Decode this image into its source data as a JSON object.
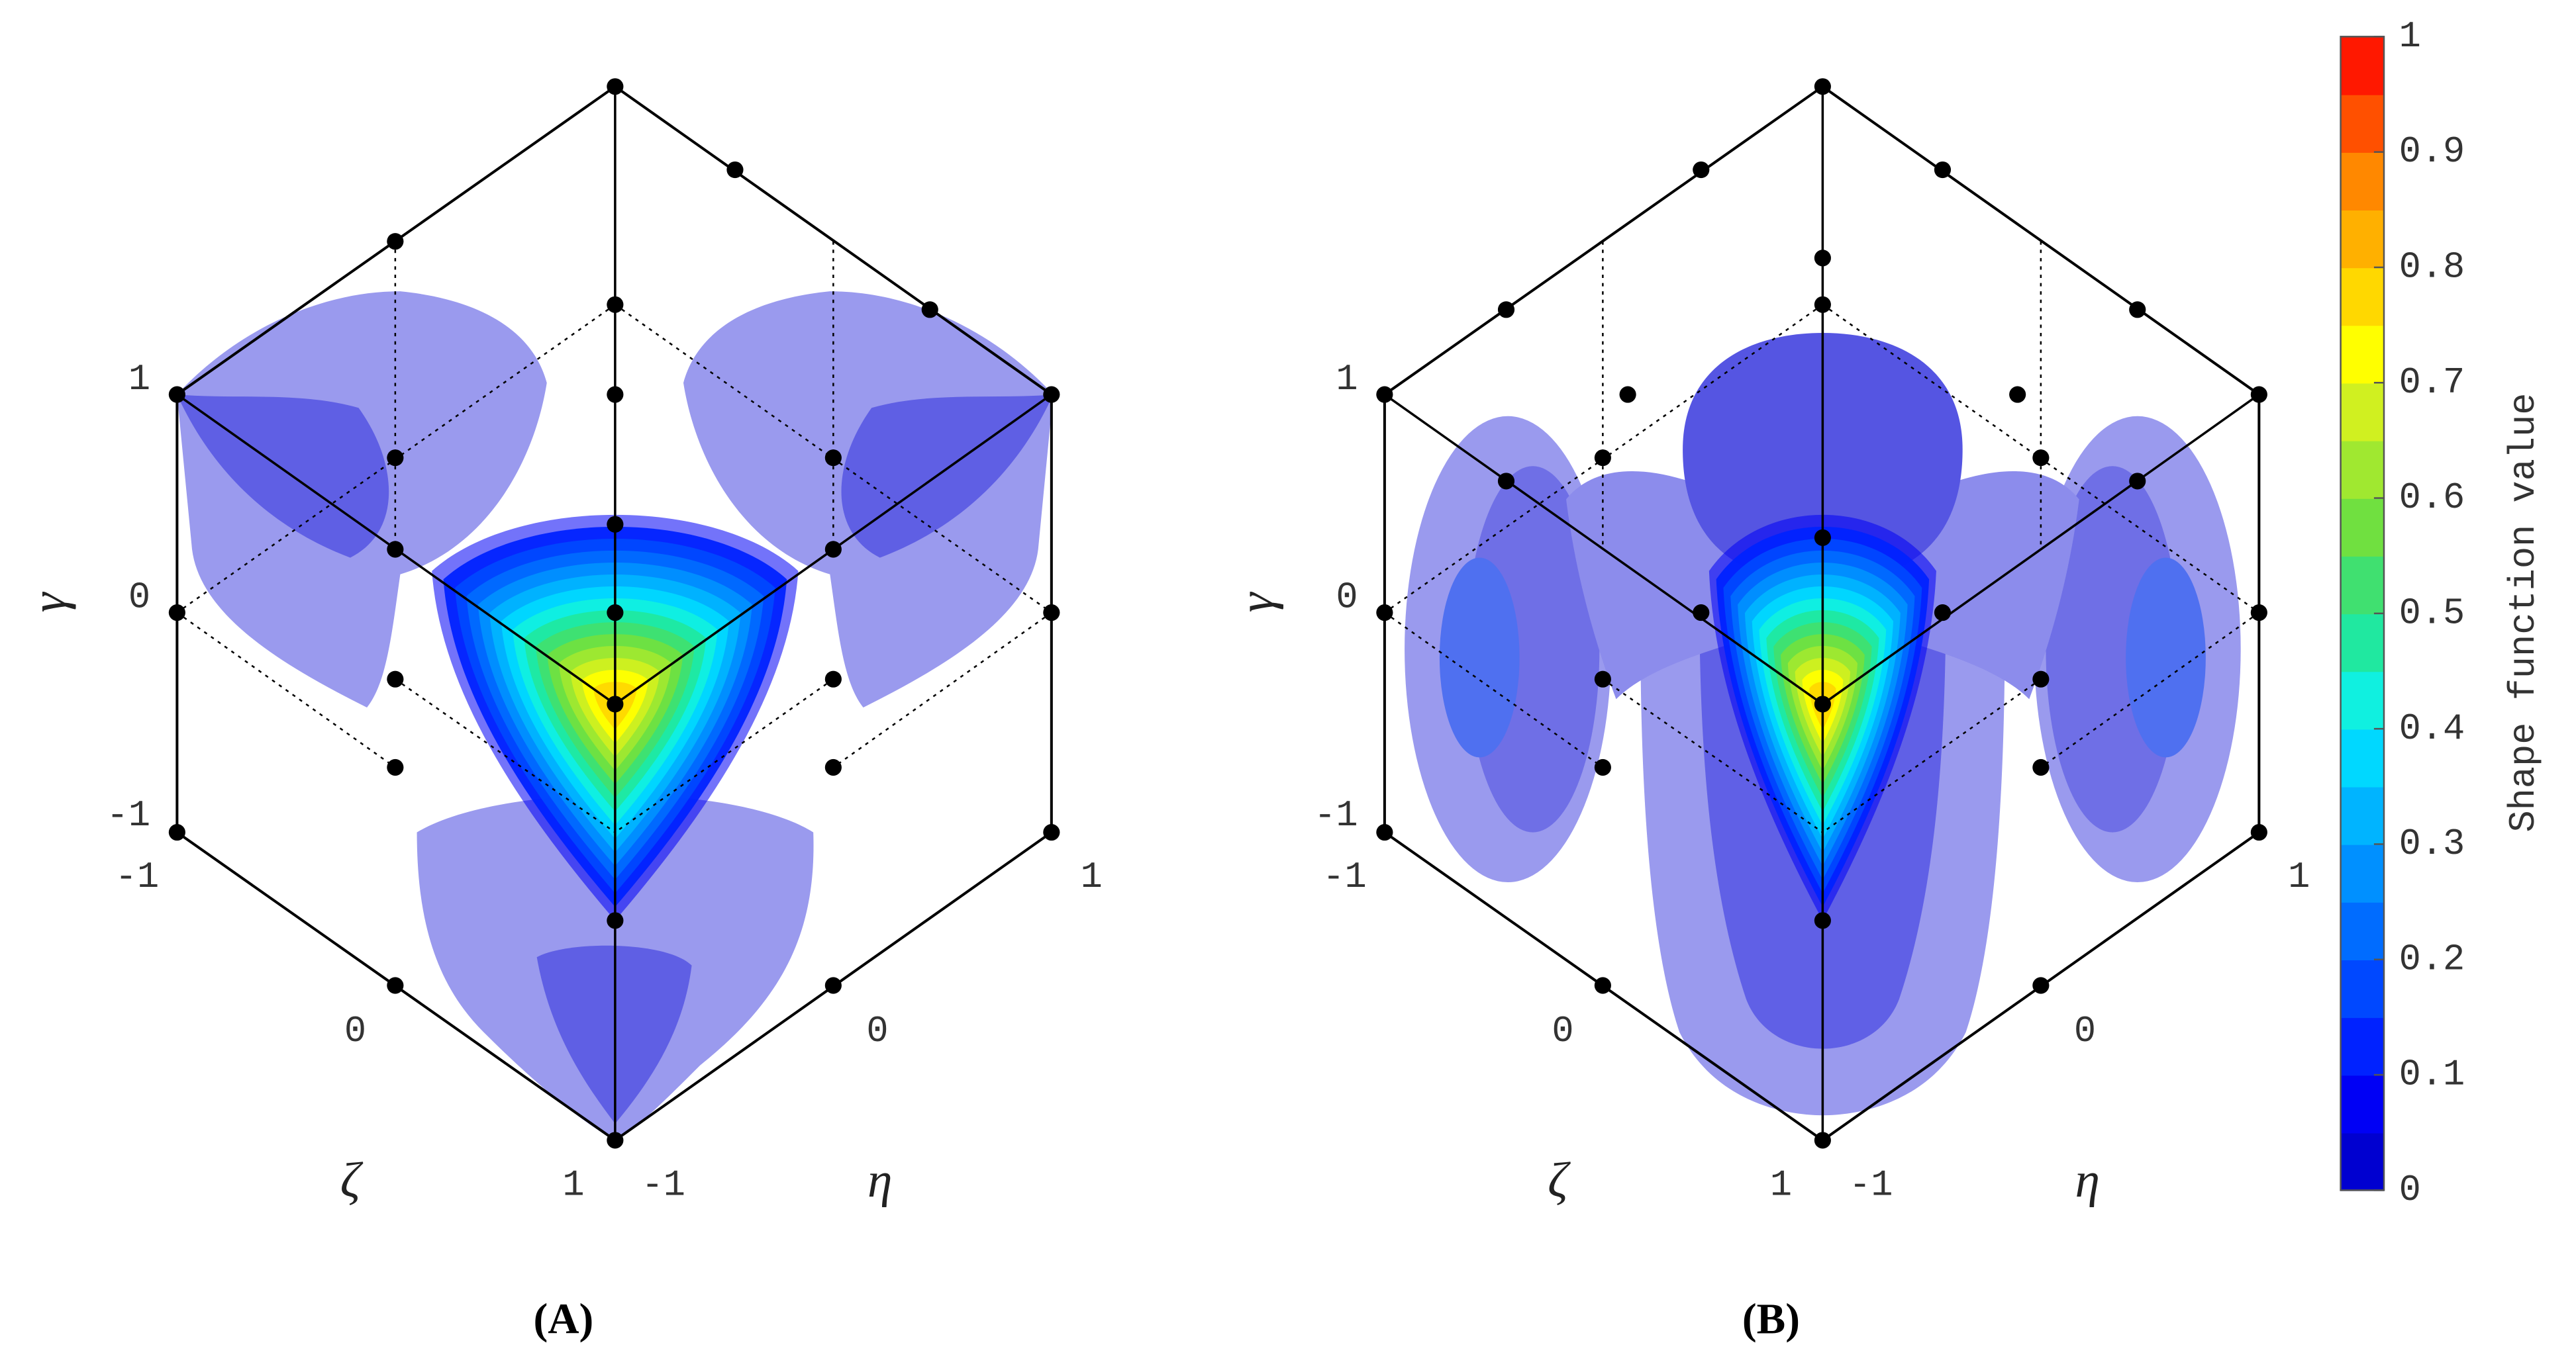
{
  "panels": [
    {
      "label": "(A)",
      "axes": {
        "gamma": {
          "label": "γ",
          "ticks": [
            -1,
            0,
            1
          ]
        },
        "zeta": {
          "label": "ζ",
          "ticks": [
            -1,
            0,
            1
          ]
        },
        "eta": {
          "label": "η",
          "ticks": [
            -1,
            0,
            1
          ]
        }
      }
    },
    {
      "label": "(B)",
      "axes": {
        "gamma": {
          "label": "γ",
          "ticks": [
            -1,
            0,
            1
          ]
        },
        "zeta": {
          "label": "ζ",
          "ticks": [
            -1,
            0,
            1
          ]
        },
        "eta": {
          "label": "η",
          "ticks": [
            -1,
            0,
            1
          ]
        }
      }
    }
  ],
  "colorbar": {
    "label": "Shape function value",
    "lim": [
      0,
      1
    ],
    "ticks": [
      0,
      0.1,
      0.2,
      0.3,
      0.4,
      0.5,
      0.6,
      0.7,
      0.8,
      0.9,
      1
    ],
    "colors": [
      "#0000d0",
      "#0000f5",
      "#0022ff",
      "#0048ff",
      "#006cff",
      "#0090ff",
      "#00b4ff",
      "#00d8ff",
      "#10f0e0",
      "#20e8a0",
      "#40e070",
      "#70e040",
      "#a0e830",
      "#d0f020",
      "#ffff00",
      "#ffd800",
      "#ffb000",
      "#ff8800",
      "#ff5000",
      "#ff1800"
    ]
  }
}
